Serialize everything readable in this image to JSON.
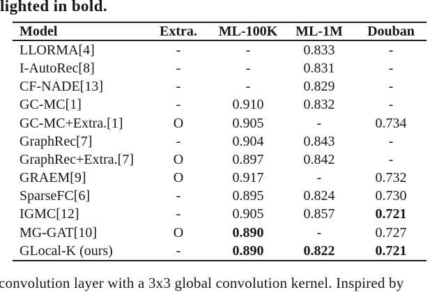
{
  "captions": {
    "top_fragment": "lighted in bold.",
    "bottom_fragment": "convolution layer with a 3x3 global convolution kernel. Inspired by"
  },
  "colors": {
    "text": "#161616",
    "rule": "#1c1c1c",
    "background": "#ffffff"
  },
  "chart_data": {
    "type": "table",
    "title": "Model comparison table (RMSE), best results highlighted in bold",
    "columns": [
      "Model",
      "Extra.",
      "ML-100K",
      "ML-1M",
      "Douban"
    ],
    "rows": [
      {
        "model": "LLORMA[4]",
        "extra": "-",
        "ml100k": "-",
        "ml1m": "0.833",
        "douban": "-",
        "bold_cells": []
      },
      {
        "model": "I-AutoRec[8]",
        "extra": "-",
        "ml100k": "-",
        "ml1m": "0.831",
        "douban": "-",
        "bold_cells": []
      },
      {
        "model": "CF-NADE[13]",
        "extra": "-",
        "ml100k": "-",
        "ml1m": "0.829",
        "douban": "-",
        "bold_cells": []
      },
      {
        "model": "GC-MC[1]",
        "extra": "-",
        "ml100k": "0.910",
        "ml1m": "0.832",
        "douban": "-",
        "bold_cells": []
      },
      {
        "model": "GC-MC+Extra.[1]",
        "extra": "O",
        "ml100k": "0.905",
        "ml1m": "-",
        "douban": "0.734",
        "bold_cells": []
      },
      {
        "model": "GraphRec[7]",
        "extra": "-",
        "ml100k": "0.904",
        "ml1m": "0.843",
        "douban": "-",
        "bold_cells": []
      },
      {
        "model": "GraphRec+Extra.[7]",
        "extra": "O",
        "ml100k": "0.897",
        "ml1m": "0.842",
        "douban": "-",
        "bold_cells": []
      },
      {
        "model": "GRAEM[9]",
        "extra": "O",
        "ml100k": "0.917",
        "ml1m": "-",
        "douban": "0.732",
        "bold_cells": []
      },
      {
        "model": "SparseFC[6]",
        "extra": "-",
        "ml100k": "0.895",
        "ml1m": "0.824",
        "douban": "0.730",
        "bold_cells": []
      },
      {
        "model": "IGMC[12]",
        "extra": "-",
        "ml100k": "0.905",
        "ml1m": "0.857",
        "douban": "0.721",
        "bold_cells": [
          "douban"
        ]
      },
      {
        "model": "MG-GAT[10]",
        "extra": "O",
        "ml100k": "0.890",
        "ml1m": "-",
        "douban": "0.727",
        "bold_cells": [
          "ml100k"
        ]
      },
      {
        "model": "GLocal-K (ours)",
        "extra": "-",
        "ml100k": "0.890",
        "ml1m": "0.822",
        "douban": "0.721",
        "bold_cells": [
          "ml100k",
          "ml1m",
          "douban"
        ]
      }
    ]
  }
}
